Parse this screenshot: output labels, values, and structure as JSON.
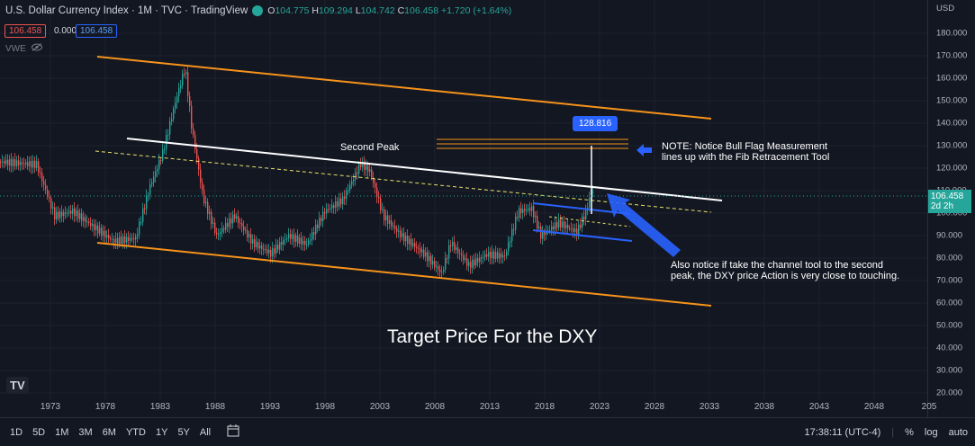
{
  "header": {
    "title": "U.S. Dollar Currency Index · 1M · TVC · TradingView",
    "ohlc": {
      "o_label": "O",
      "o": "104.775",
      "h_label": "H",
      "h": "109.294",
      "l_label": "L",
      "l": "104.742",
      "c_label": "C",
      "c": "106.458",
      "change": "+1.720 (+1.64%)"
    }
  },
  "price_pills": {
    "sell": "106.458",
    "spread": "0.000",
    "buy": "106.458"
  },
  "indicator": {
    "label": "VWE"
  },
  "y_axis": {
    "currency": "USD",
    "ticks": [
      "180.000",
      "170.000",
      "160.000",
      "150.000",
      "140.000",
      "130.000",
      "120.000",
      "110.000",
      "100.000",
      "90.000",
      "80.000",
      "70.000",
      "60.000",
      "50.000",
      "40.000",
      "30.000",
      "20.000"
    ],
    "current_price": "106.458",
    "countdown": "2d 2h"
  },
  "x_axis": {
    "ticks": [
      "1973",
      "1978",
      "1983",
      "1988",
      "1993",
      "1998",
      "2003",
      "2008",
      "2013",
      "2018",
      "2023",
      "2028",
      "2033",
      "2038",
      "2043",
      "2048",
      "205"
    ]
  },
  "annotations": {
    "second_peak": "Second Peak",
    "target_badge": "128.816",
    "note1_line1": "NOTE: Notice Bull Flag Measurement",
    "note1_line2": "lines up with the Fib Retracement Tool",
    "note2_line1": "Also notice if take the channel tool to the second",
    "note2_line2": "peak, the DXY price Action is very close to touching.",
    "title": "Target Price For the DXY"
  },
  "toolbar": {
    "ranges": [
      "1D",
      "5D",
      "1M",
      "3M",
      "6M",
      "YTD",
      "1Y",
      "5Y",
      "All"
    ],
    "time": "17:38:11 (UTC-4)",
    "percent": "%",
    "log": "log",
    "auto": "auto"
  },
  "logo": "TV",
  "colors": {
    "background": "#131722",
    "up": "#26a69a",
    "down": "#ef5350",
    "channel": "#f7931a",
    "accent": "#2962ff"
  }
}
